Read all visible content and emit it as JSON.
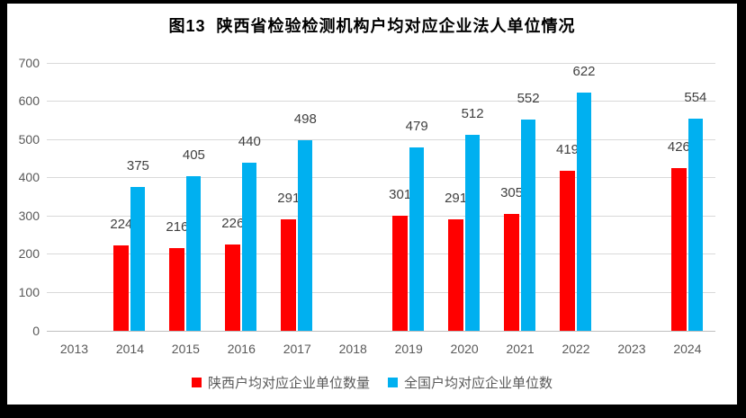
{
  "title": "图13  陕西省检验检测机构户均对应企业法人单位情况",
  "chart_data": {
    "type": "bar",
    "title": "图13  陕西省检验检测机构户均对应企业法人单位情况",
    "categories": [
      "2013",
      "2014",
      "2015",
      "2016",
      "2017",
      "2018",
      "2019",
      "2020",
      "2021",
      "2022",
      "2023",
      "2024"
    ],
    "series": [
      {
        "key": "shaanxi",
        "name": "陕西户均对应企业单位数量",
        "color": "#FF0000",
        "values": [
          null,
          224,
          216,
          226,
          291,
          null,
          301,
          291,
          305,
          419,
          null,
          426
        ]
      },
      {
        "key": "national",
        "name": "全国户均对应企业单位数",
        "color": "#00B0F0",
        "values": [
          null,
          375,
          405,
          440,
          498,
          null,
          479,
          512,
          552,
          622,
          null,
          554
        ]
      }
    ],
    "xlabel": "",
    "ylabel": "",
    "ylim": [
      0,
      700
    ],
    "yticks": [
      0,
      100,
      200,
      300,
      400,
      500,
      600,
      700
    ],
    "grid": true,
    "legend_position": "bottom",
    "data_labels": "outside-end"
  },
  "style": {
    "frame_bg": "#000000",
    "page_bg": "#FFFFFF",
    "gridline_color": "#D9D9D9",
    "axis_line_color": "#BFBFBF",
    "axis_label_color": "#595959",
    "data_label_color": "#404040",
    "title_color": "#000000"
  }
}
